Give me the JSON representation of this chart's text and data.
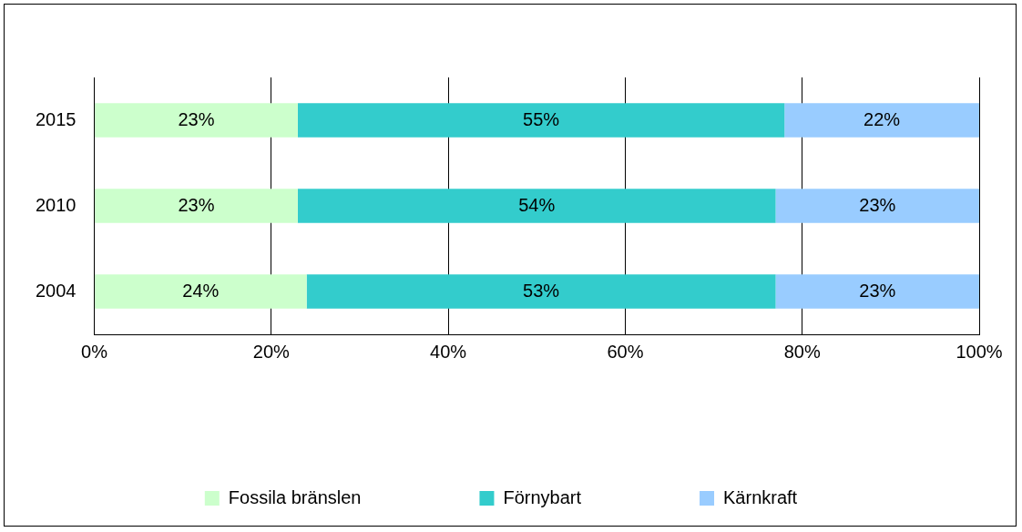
{
  "chart_data": {
    "type": "bar",
    "orientation": "horizontal",
    "stacked": true,
    "categories": [
      "2015",
      "2010",
      "2004"
    ],
    "series": [
      {
        "name": "Fossila bränslen",
        "color": "#ccffcc",
        "values": [
          23,
          23,
          24
        ],
        "value_labels": [
          "23%",
          "23%",
          "24%"
        ]
      },
      {
        "name": "Förnybart",
        "color": "#33cccc",
        "values": [
          55,
          54,
          53
        ],
        "value_labels": [
          "55%",
          "54%",
          "53%"
        ]
      },
      {
        "name": "Kärnkraft",
        "color": "#99ccff",
        "values": [
          22,
          23,
          23
        ],
        "value_labels": [
          "22%",
          "23%",
          "23%"
        ]
      }
    ],
    "xlim": [
      0,
      100
    ],
    "xticks": [
      {
        "value": 0,
        "label": "0%"
      },
      {
        "value": 20,
        "label": "20%"
      },
      {
        "value": 40,
        "label": "40%"
      },
      {
        "value": 60,
        "label": "60%"
      },
      {
        "value": 80,
        "label": "80%"
      },
      {
        "value": 100,
        "label": "100%"
      }
    ],
    "grid": "x",
    "legend": "bottom"
  }
}
